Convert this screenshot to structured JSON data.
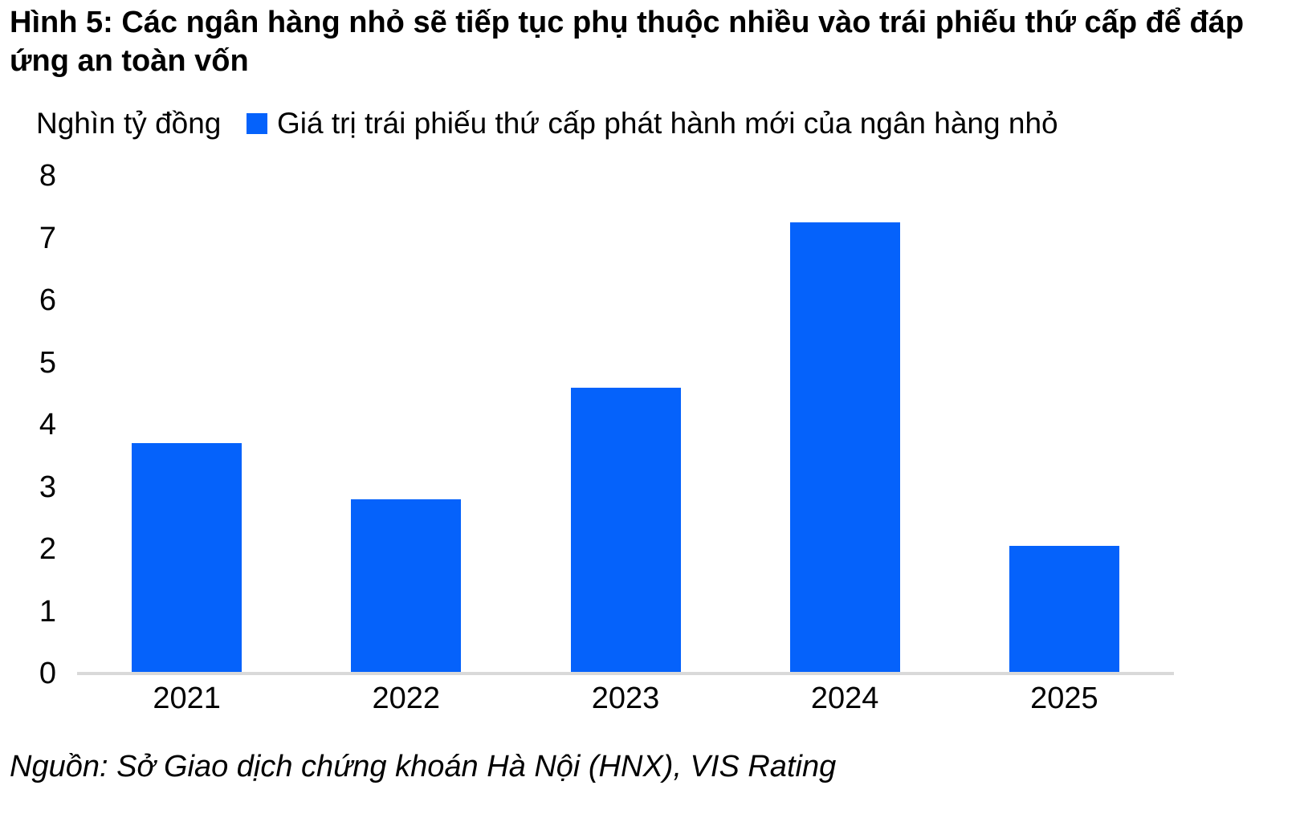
{
  "title": "Hình 5: Các ngân hàng nhỏ sẽ tiếp tục phụ thuộc nhiều vào trái phiếu thứ cấp để đáp ứng an toàn vốn",
  "unit_label": "Nghìn tỷ đồng",
  "legend": {
    "label": "Giá trị trái phiếu thứ cấp phát hành mới của ngân hàng nhỏ",
    "marker_color": "#0562FB"
  },
  "source": "Nguồn: Sở Giao dịch chứng khoán Hà Nội (HNX), VIS Rating",
  "colors": {
    "bar": "#0562FB",
    "axis_line": "#d9d9d9",
    "text": "#000000",
    "background": "#ffffff"
  },
  "chart_data": {
    "type": "bar",
    "title": "Hình 5: Các ngân hàng nhỏ sẽ tiếp tục phụ thuộc nhiều vào trái phiếu thứ cấp để đáp ứng an toàn vốn",
    "categories": [
      "2021",
      "2022",
      "2023",
      "2024",
      "2025"
    ],
    "values": [
      3.7,
      2.8,
      4.6,
      7.25,
      2.05
    ],
    "series_name": "Giá trị trái phiếu thứ cấp phát hành mới của ngân hàng nhỏ",
    "xlabel": "",
    "ylabel": "Nghìn tỷ đồng",
    "ylim": [
      0,
      8
    ],
    "yticks": [
      0,
      1,
      2,
      3,
      4,
      5,
      6,
      7,
      8
    ],
    "grid": false,
    "legend_position": "top-left"
  }
}
